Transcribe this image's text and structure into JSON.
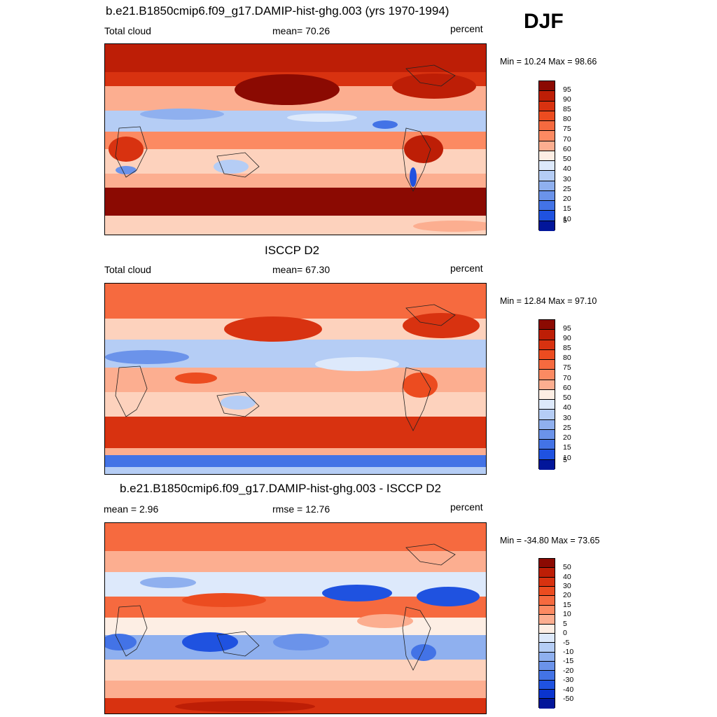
{
  "season": "DJF",
  "colors": {
    "pos": [
      "#fdeee4",
      "#fdd2bd",
      "#fcae90",
      "#fc8a62",
      "#f66a3f",
      "#ec4c20",
      "#d83210",
      "#bd1e06",
      "#8b0a02"
    ],
    "neg": [
      "#dde9fb",
      "#b5cdf5",
      "#8fb0ef",
      "#6b93ea",
      "#4373e6",
      "#1f52e0",
      "#0a34cf",
      "#02169a"
    ]
  },
  "panels": [
    {
      "title": "b.e21.B1850cmip6.f09_g17.DAMIP-hist-ghg.003 (yrs 1970-1994)",
      "left_label": "Total cloud",
      "stat_label": "mean=",
      "stat_value": "70.26",
      "units": "percent",
      "minmax": "Min =  10.24 Max =  98.66",
      "levels": [
        "95",
        "90",
        "85",
        "80",
        "75",
        "70",
        "60",
        "50",
        "40",
        "30",
        "25",
        "20",
        "15",
        "10",
        "5"
      ]
    },
    {
      "title": "ISCCP D2",
      "left_label": "Total cloud",
      "stat_label": "mean=",
      "stat_value": "67.30",
      "units": "percent",
      "minmax": "Min =  12.84 Max =  97.10",
      "levels": [
        "95",
        "90",
        "85",
        "80",
        "75",
        "70",
        "60",
        "50",
        "40",
        "30",
        "25",
        "20",
        "15",
        "10",
        "5"
      ]
    },
    {
      "title": "b.e21.B1850cmip6.f09_g17.DAMIP-hist-ghg.003 - ISCCP D2",
      "left_label": "mean =   2.96",
      "stat_label": "rmse =",
      "stat_value": "12.76",
      "units": "percent",
      "minmax": "Min = -34.80 Max =  73.65",
      "levels": [
        "50",
        "40",
        "30",
        "20",
        "15",
        "10",
        "5",
        "0",
        "-5",
        "-10",
        "-15",
        "-20",
        "-30",
        "-40",
        "-50"
      ]
    }
  ]
}
